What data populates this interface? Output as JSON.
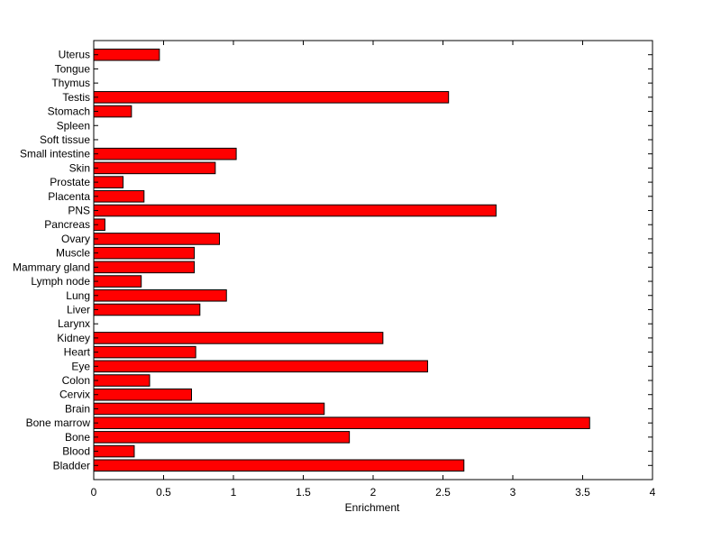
{
  "chart_data": {
    "type": "bar",
    "orientation": "horizontal",
    "title": "",
    "xlabel": "Enrichment",
    "ylabel": "",
    "xlim": [
      0,
      4
    ],
    "xticks": [
      "0",
      "0.5",
      "1",
      "1.5",
      "2",
      "2.5",
      "3",
      "3.5",
      "4"
    ],
    "grid": false,
    "bar_color": "#ff0000",
    "categories": [
      "Bladder",
      "Blood",
      "Bone",
      "Bone marrow",
      "Brain",
      "Cervix",
      "Colon",
      "Eye",
      "Heart",
      "Kidney",
      "Larynx",
      "Liver",
      "Lung",
      "Lymph node",
      "Mammary gland",
      "Muscle",
      "Ovary",
      "Pancreas",
      "PNS",
      "Placenta",
      "Prostate",
      "Skin",
      "Small intestine",
      "Soft tissue",
      "Spleen",
      "Stomach",
      "Testis",
      "Thymus",
      "Tongue",
      "Uterus"
    ],
    "values": [
      2.65,
      0.29,
      1.83,
      3.55,
      1.65,
      0.7,
      0.4,
      2.39,
      0.73,
      2.07,
      0,
      0.76,
      0.95,
      0.34,
      0.72,
      0.72,
      0.9,
      0.08,
      2.88,
      0.36,
      0.21,
      0.87,
      1.02,
      0,
      0,
      0.27,
      2.54,
      0,
      0,
      0.47
    ]
  }
}
